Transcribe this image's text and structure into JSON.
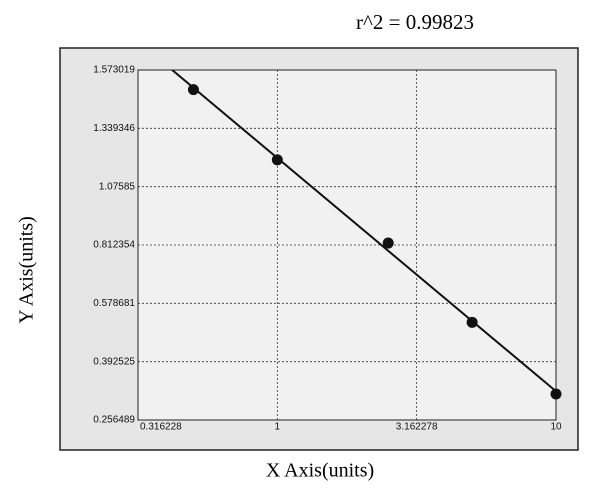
{
  "chart_data": {
    "type": "scatter",
    "title": "r^2 = 0.99823",
    "x_label": "X Axis(units)",
    "y_label": "Y Axis(units)",
    "x_scale": "log",
    "y_scale": "log",
    "grid": true,
    "fit_line": true,
    "color": "#111111",
    "x": [
      0.5,
      1,
      2.5,
      5,
      10
    ],
    "values": [
      1.49,
      1.19,
      0.82,
      0.51,
      0.31
    ],
    "xlim": [
      0.316228,
      10
    ],
    "xticks": [
      0.316228,
      1,
      3.162278,
      10
    ],
    "ylim": [
      0.256489,
      1.573019
    ],
    "yticks": [
      0.256489,
      0.392525,
      0.578681,
      0.812354,
      1.07585,
      1.339346,
      1.573019
    ]
  }
}
